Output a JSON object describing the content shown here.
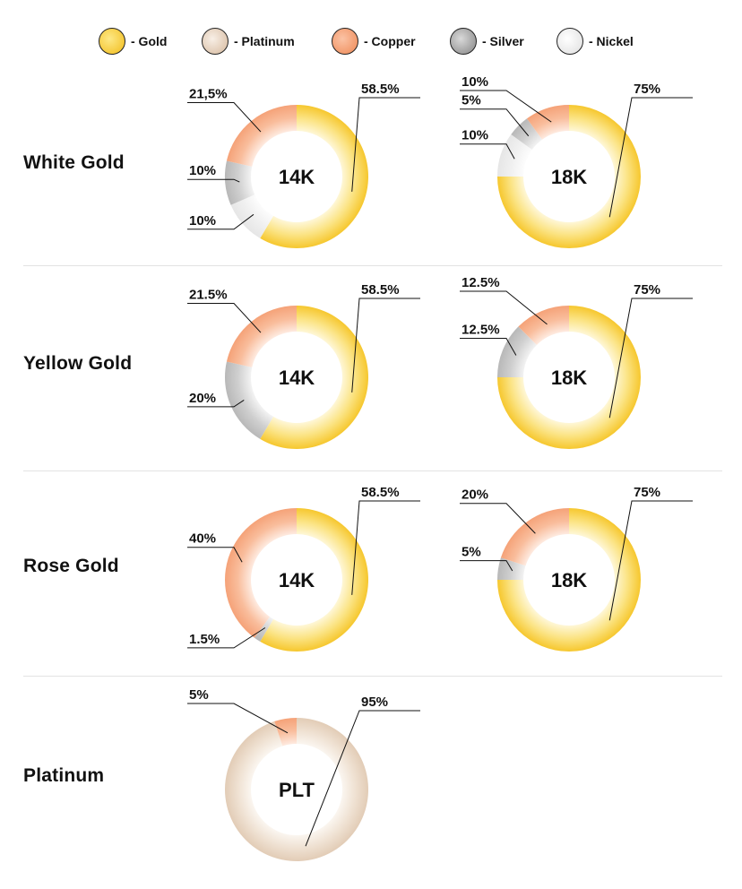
{
  "legend": [
    {
      "key": "gold",
      "label": "- Gold",
      "color": "#f5c93a"
    },
    {
      "key": "platinum",
      "label": "- Platinum",
      "color": "#e3cfbb"
    },
    {
      "key": "copper",
      "label": "- Copper",
      "color": "#f4a47b"
    },
    {
      "key": "silver",
      "label": "- Silver",
      "color": "#aaaaaa"
    },
    {
      "key": "nickel",
      "label": "- Nickel",
      "color": "#ececec"
    }
  ],
  "rows": [
    {
      "label": "White Gold"
    },
    {
      "label": "Yellow Gold"
    },
    {
      "label": "Rose Gold"
    },
    {
      "label": "Platinum"
    }
  ],
  "chart_data": [
    {
      "type": "pie",
      "row": "White Gold",
      "center_label": "14K",
      "slices": [
        {
          "metal": "gold",
          "value": 58.5,
          "label": "58.5%"
        },
        {
          "metal": "nickel",
          "value": 10,
          "label": "10%"
        },
        {
          "metal": "silver",
          "value": 10,
          "label": "10%"
        },
        {
          "metal": "copper",
          "value": 21.5,
          "label": "21,5%"
        }
      ]
    },
    {
      "type": "pie",
      "row": "White Gold",
      "center_label": "18K",
      "slices": [
        {
          "metal": "gold",
          "value": 75,
          "label": "75%"
        },
        {
          "metal": "nickel",
          "value": 10,
          "label": "10%"
        },
        {
          "metal": "silver",
          "value": 5,
          "label": "5%"
        },
        {
          "metal": "copper",
          "value": 10,
          "label": "10%"
        }
      ]
    },
    {
      "type": "pie",
      "row": "Yellow Gold",
      "center_label": "14K",
      "slices": [
        {
          "metal": "gold",
          "value": 58.5,
          "label": "58.5%"
        },
        {
          "metal": "silver",
          "value": 20,
          "label": "20%"
        },
        {
          "metal": "copper",
          "value": 21.5,
          "label": "21.5%"
        }
      ]
    },
    {
      "type": "pie",
      "row": "Yellow Gold",
      "center_label": "18K",
      "slices": [
        {
          "metal": "gold",
          "value": 75,
          "label": "75%"
        },
        {
          "metal": "silver",
          "value": 12.5,
          "label": "12.5%"
        },
        {
          "metal": "copper",
          "value": 12.5,
          "label": "12.5%"
        }
      ]
    },
    {
      "type": "pie",
      "row": "Rose Gold",
      "center_label": "14K",
      "slices": [
        {
          "metal": "gold",
          "value": 58.5,
          "label": "58.5%"
        },
        {
          "metal": "silver",
          "value": 1.5,
          "label": "1.5%"
        },
        {
          "metal": "copper",
          "value": 40,
          "label": "40%"
        }
      ]
    },
    {
      "type": "pie",
      "row": "Rose Gold",
      "center_label": "18K",
      "slices": [
        {
          "metal": "gold",
          "value": 75,
          "label": "75%"
        },
        {
          "metal": "silver",
          "value": 5,
          "label": "5%"
        },
        {
          "metal": "copper",
          "value": 20,
          "label": "20%"
        }
      ]
    },
    {
      "type": "pie",
      "row": "Platinum",
      "center_label": "PLT",
      "slices": [
        {
          "metal": "platinum",
          "value": 95,
          "label": "95%"
        },
        {
          "metal": "copper",
          "value": 5,
          "label": "5%"
        }
      ]
    }
  ]
}
